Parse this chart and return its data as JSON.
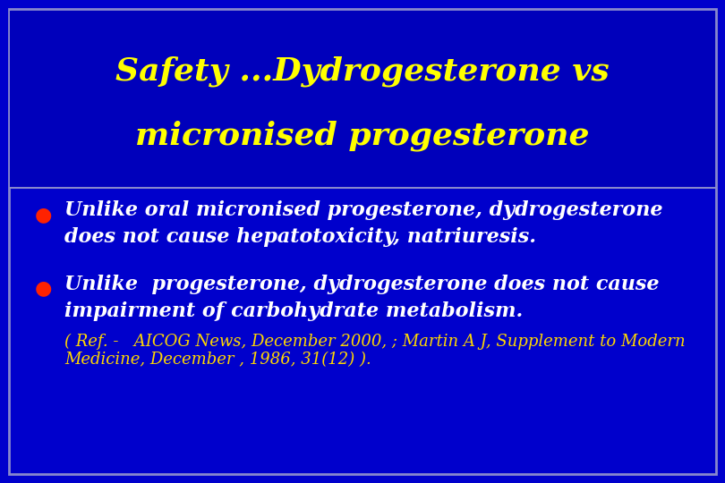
{
  "title_line1": "Safety ...Dydrogesterone vs",
  "title_line2": "micronised progesterone",
  "title_color": "#FFFF00",
  "title_fontsize": 26,
  "background_color": "#0000CC",
  "border_color": "#8888CC",
  "bullet_color": "#FF2200",
  "bullet1_line1": "Unlike oral micronised progesterone, dydrogesterone",
  "bullet1_line2": "does not cause hepatotoxicity, natriuresis.",
  "bullet2_line1": "Unlike  progesterone, dydrogesterone does not cause",
  "bullet2_line2": "impairment of carbohydrate metabolism.",
  "ref_line1": "( Ref. -   AICOG News, December 2000, ; Martin A J, Supplement to Modern",
  "ref_line2": "Medicine, December , 1986, 31(12) ).",
  "body_text_color": "#FFFFFF",
  "ref_text_color": "#FFD700",
  "body_fontsize": 16,
  "ref_fontsize": 13
}
